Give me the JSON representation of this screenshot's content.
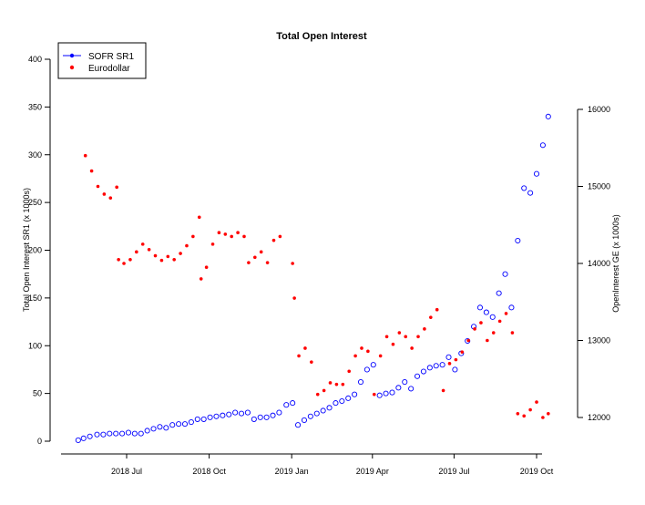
{
  "chart_data": {
    "type": "scatter",
    "title": "Total Open Interest",
    "ylabel_left": "Total Open Interest SR1 (x 1000s)",
    "ylabel_right": "OpenInterest GE (x 1000s)",
    "xlabel": "",
    "x_ticks": [
      "2018 Jul",
      "2018 Oct",
      "2019 Jan",
      "2019 Apr",
      "2019 Jul",
      "2019 Oct"
    ],
    "y_left_ticks": [
      "0",
      "50",
      "100",
      "150",
      "200",
      "250",
      "300",
      "350",
      "400"
    ],
    "y_right_ticks": [
      "12000",
      "13000",
      "14000",
      "15000",
      "16000"
    ],
    "ylim_left": [
      0,
      400
    ],
    "ylim_right": [
      12000,
      16000
    ],
    "grid": false,
    "legend_position": "top-left",
    "colors": {
      "sofr": "#0000ff",
      "eurodollar": "#ff0000"
    },
    "series": [
      {
        "name": "SOFR SR1",
        "marker": "open-circle",
        "axis": "left",
        "points": [
          [
            "2018-05-08",
            1
          ],
          [
            "2018-05-14",
            3
          ],
          [
            "2018-05-21",
            5
          ],
          [
            "2018-05-29",
            7
          ],
          [
            "2018-06-05",
            7
          ],
          [
            "2018-06-12",
            8
          ],
          [
            "2018-06-19",
            8
          ],
          [
            "2018-06-26",
            8
          ],
          [
            "2018-07-03",
            9
          ],
          [
            "2018-07-10",
            8
          ],
          [
            "2018-07-17",
            8
          ],
          [
            "2018-07-24",
            11
          ],
          [
            "2018-07-31",
            13
          ],
          [
            "2018-08-07",
            15
          ],
          [
            "2018-08-14",
            14
          ],
          [
            "2018-08-21",
            17
          ],
          [
            "2018-08-28",
            18
          ],
          [
            "2018-09-04",
            18
          ],
          [
            "2018-09-11",
            20
          ],
          [
            "2018-09-18",
            23
          ],
          [
            "2018-09-25",
            23
          ],
          [
            "2018-10-02",
            25
          ],
          [
            "2018-10-09",
            26
          ],
          [
            "2018-10-16",
            27
          ],
          [
            "2018-10-23",
            28
          ],
          [
            "2018-10-30",
            30
          ],
          [
            "2018-11-06",
            29
          ],
          [
            "2018-11-13",
            30
          ],
          [
            "2018-11-20",
            23
          ],
          [
            "2018-11-27",
            25
          ],
          [
            "2018-12-04",
            25
          ],
          [
            "2018-12-11",
            27
          ],
          [
            "2018-12-18",
            30
          ],
          [
            "2018-12-26",
            38
          ],
          [
            "2019-01-02",
            40
          ],
          [
            "2019-01-08",
            17
          ],
          [
            "2019-01-15",
            22
          ],
          [
            "2019-01-22",
            26
          ],
          [
            "2019-01-29",
            29
          ],
          [
            "2019-02-05",
            32
          ],
          [
            "2019-02-12",
            35
          ],
          [
            "2019-02-19",
            40
          ],
          [
            "2019-02-26",
            42
          ],
          [
            "2019-03-05",
            45
          ],
          [
            "2019-03-12",
            49
          ],
          [
            "2019-03-19",
            62
          ],
          [
            "2019-03-26",
            75
          ],
          [
            "2019-04-02",
            80
          ],
          [
            "2019-04-09",
            48
          ],
          [
            "2019-04-16",
            50
          ],
          [
            "2019-04-23",
            51
          ],
          [
            "2019-04-30",
            56
          ],
          [
            "2019-05-07",
            62
          ],
          [
            "2019-05-14",
            55
          ],
          [
            "2019-05-21",
            68
          ],
          [
            "2019-05-28",
            73
          ],
          [
            "2019-06-04",
            77
          ],
          [
            "2019-06-11",
            79
          ],
          [
            "2019-06-18",
            80
          ],
          [
            "2019-06-25",
            88
          ],
          [
            "2019-07-02",
            75
          ],
          [
            "2019-07-09",
            92
          ],
          [
            "2019-07-16",
            105
          ],
          [
            "2019-07-23",
            120
          ],
          [
            "2019-07-30",
            140
          ],
          [
            "2019-08-06",
            135
          ],
          [
            "2019-08-13",
            130
          ],
          [
            "2019-08-20",
            155
          ],
          [
            "2019-08-27",
            175
          ],
          [
            "2019-09-03",
            140
          ],
          [
            "2019-09-10",
            210
          ],
          [
            "2019-09-17",
            265
          ],
          [
            "2019-09-24",
            260
          ],
          [
            "2019-10-01",
            280
          ],
          [
            "2019-10-08",
            310
          ],
          [
            "2019-10-14",
            340
          ]
        ]
      },
      {
        "name": "Eurodollar",
        "marker": "filled-circle",
        "axis": "right",
        "points": [
          [
            "2018-05-16",
            15400
          ],
          [
            "2018-05-23",
            15200
          ],
          [
            "2018-05-30",
            15000
          ],
          [
            "2018-06-06",
            14900
          ],
          [
            "2018-06-13",
            14850
          ],
          [
            "2018-06-20",
            14990
          ],
          [
            "2018-06-22",
            14050
          ],
          [
            "2018-06-28",
            14000
          ],
          [
            "2018-07-05",
            14050
          ],
          [
            "2018-07-12",
            14150
          ],
          [
            "2018-07-19",
            14250
          ],
          [
            "2018-07-26",
            14180
          ],
          [
            "2018-08-02",
            14100
          ],
          [
            "2018-08-09",
            14040
          ],
          [
            "2018-08-16",
            14090
          ],
          [
            "2018-08-23",
            14050
          ],
          [
            "2018-08-30",
            14130
          ],
          [
            "2018-09-06",
            14230
          ],
          [
            "2018-09-13",
            14350
          ],
          [
            "2018-09-20",
            14600
          ],
          [
            "2018-09-22",
            13800
          ],
          [
            "2018-09-28",
            13950
          ],
          [
            "2018-10-05",
            14250
          ],
          [
            "2018-10-12",
            14400
          ],
          [
            "2018-10-19",
            14380
          ],
          [
            "2018-10-26",
            14350
          ],
          [
            "2018-11-02",
            14400
          ],
          [
            "2018-11-09",
            14350
          ],
          [
            "2018-11-14",
            14010
          ],
          [
            "2018-11-21",
            14080
          ],
          [
            "2018-11-28",
            14150
          ],
          [
            "2018-12-05",
            14010
          ],
          [
            "2018-12-12",
            14300
          ],
          [
            "2018-12-19",
            14350
          ],
          [
            "2019-01-02",
            14000
          ],
          [
            "2019-01-04",
            13550
          ],
          [
            "2019-01-09",
            12800
          ],
          [
            "2019-01-16",
            12900
          ],
          [
            "2019-01-23",
            12720
          ],
          [
            "2019-01-30",
            12300
          ],
          [
            "2019-02-06",
            12350
          ],
          [
            "2019-02-13",
            12450
          ],
          [
            "2019-02-20",
            12430
          ],
          [
            "2019-02-27",
            12430
          ],
          [
            "2019-03-06",
            12600
          ],
          [
            "2019-03-13",
            12800
          ],
          [
            "2019-03-20",
            12900
          ],
          [
            "2019-03-27",
            12860
          ],
          [
            "2019-04-03",
            12300
          ],
          [
            "2019-04-10",
            12800
          ],
          [
            "2019-04-17",
            13050
          ],
          [
            "2019-04-24",
            12950
          ],
          [
            "2019-05-01",
            13100
          ],
          [
            "2019-05-08",
            13050
          ],
          [
            "2019-05-15",
            12900
          ],
          [
            "2019-05-22",
            13050
          ],
          [
            "2019-05-29",
            13150
          ],
          [
            "2019-06-05",
            13300
          ],
          [
            "2019-06-12",
            13400
          ],
          [
            "2019-06-19",
            12350
          ],
          [
            "2019-06-26",
            12700
          ],
          [
            "2019-07-03",
            12750
          ],
          [
            "2019-07-10",
            12850
          ],
          [
            "2019-07-17",
            13000
          ],
          [
            "2019-07-24",
            13150
          ],
          [
            "2019-07-31",
            13230
          ],
          [
            "2019-08-07",
            13000
          ],
          [
            "2019-08-14",
            13100
          ],
          [
            "2019-08-21",
            13250
          ],
          [
            "2019-08-28",
            13350
          ],
          [
            "2019-09-04",
            13100
          ],
          [
            "2019-09-10",
            12050
          ],
          [
            "2019-09-17",
            12020
          ],
          [
            "2019-09-24",
            12100
          ],
          [
            "2019-10-01",
            12200
          ],
          [
            "2019-10-08",
            12000
          ],
          [
            "2019-10-14",
            12050
          ]
        ]
      }
    ]
  }
}
